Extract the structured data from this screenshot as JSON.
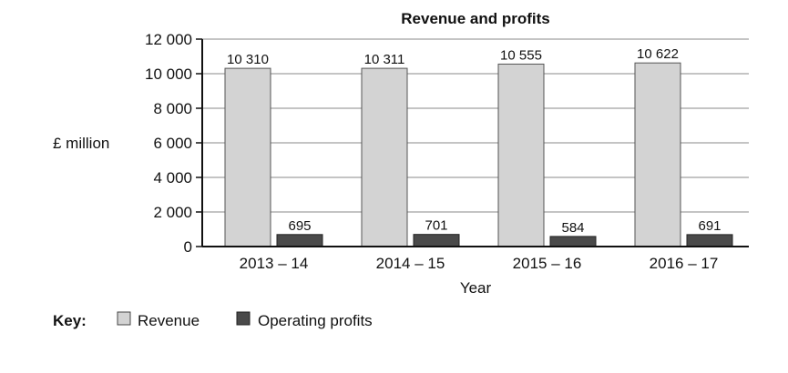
{
  "chart_data": {
    "type": "bar",
    "title": "Revenue and profits",
    "xlabel": "Year",
    "ylabel": "£ million",
    "categories": [
      "2013 – 14",
      "2014 – 15",
      "2015 – 16",
      "2016 – 17"
    ],
    "series": [
      {
        "name": "Revenue",
        "values": [
          10310,
          10311,
          10555,
          10622
        ],
        "labels": [
          "10 310",
          "10 311",
          "10 555",
          "10 622"
        ],
        "color": "#d3d3d3"
      },
      {
        "name": "Operating profits",
        "values": [
          695,
          701,
          584,
          691
        ],
        "labels": [
          "695",
          "701",
          "584",
          "691"
        ],
        "color": "#4a4a4a"
      }
    ],
    "ylim": [
      0,
      12000
    ],
    "yticks": [
      0,
      2000,
      4000,
      6000,
      8000,
      10000,
      12000
    ],
    "ytick_labels": [
      "0",
      "2 000",
      "4 000",
      "6 000",
      "8 000",
      "10 000",
      "12 000"
    ],
    "grid": true,
    "legend": {
      "title": "Key:",
      "placement": "bottom-left"
    }
  }
}
